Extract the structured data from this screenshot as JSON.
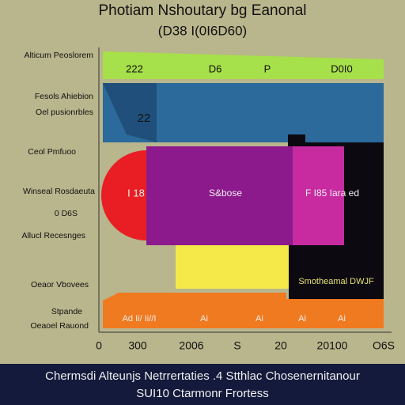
{
  "header": {
    "title": "Photiam Nshoutary bg Eanonal",
    "subtitle": "(D38 I(0I6D60)"
  },
  "left_labels": [
    "Alticum Peoslorem",
    "Fesols Ahiebion",
    "Oel pusionrbles",
    "Ceol Pmfuoo",
    "Winseal Rosdaeuta",
    "0 D6S",
    "Allucl Recesnges",
    "Oeaor Vbovees",
    "Stpande",
    "Oeaoel Rauond"
  ],
  "band_labels": {
    "green": [
      "222",
      "D6",
      "P",
      "D0I0"
    ],
    "blue": "22",
    "magenta": [
      "I 18",
      "S&bose",
      "F I85 Iara ed"
    ],
    "black": "Smotheamal DWJF",
    "orange": [
      "Ad Ii/ Ii//I",
      "Ai",
      "Ai",
      "Ai",
      "Ai"
    ]
  },
  "x_labels": [
    "0",
    "300",
    "2006",
    "S",
    "20",
    "20100",
    "O6S"
  ],
  "footer": [
    "Chermsdi Alteunjs Netrrertaties .4 Stthlac Chosenernitanour",
    "SUI10 Ctarmonr Frortess"
  ]
}
